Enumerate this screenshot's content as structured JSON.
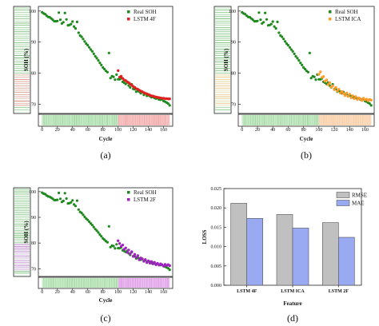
{
  "colors": {
    "real_soh": "#1e8a1e",
    "lstm_4f": "#e02020",
    "lstm_ica": "#ff9a2a",
    "lstm_2f": "#a020c0",
    "rmse_bar": "#c0c0c0",
    "mae_bar": "#99aaf2",
    "train_band": "#c9ecc9",
    "test_band_a": "#f7c7c7",
    "test_band_b": "#f9dcc2",
    "test_band_c": "#ecbff0"
  },
  "chart_data": [
    {
      "type": "scatter",
      "panel_label": "(a)",
      "xlabel": "Cycle",
      "ylabel": "SOH (%)",
      "xlim": [
        -5,
        172
      ],
      "ylim": [
        67,
        101.5
      ],
      "x_ticks": [
        "0",
        "20",
        "40",
        "60",
        "80",
        "100",
        "120",
        "140",
        "160"
      ],
      "y_ticks": [
        "70",
        "80",
        "90",
        "100"
      ],
      "legend": [
        "Real SOH",
        "LSTM 4F"
      ],
      "legend_position": "top-right",
      "series": [
        {
          "name": "Real SOH",
          "color": "#1e8a1e",
          "x": [
            0,
            2,
            4,
            6,
            8,
            10,
            12,
            14,
            16,
            18,
            20,
            22,
            24,
            26,
            28,
            30,
            32,
            34,
            36,
            38,
            40,
            42,
            44,
            46,
            48,
            50,
            52,
            54,
            56,
            58,
            60,
            62,
            64,
            66,
            68,
            70,
            72,
            74,
            76,
            78,
            80,
            82,
            84,
            86,
            88,
            90,
            92,
            94,
            96,
            98,
            100,
            102,
            104,
            106,
            108,
            110,
            112,
            114,
            116,
            118,
            120,
            122,
            124,
            126,
            128,
            130,
            132,
            134,
            136,
            138,
            140,
            142,
            144,
            146,
            148,
            150,
            152,
            154,
            156,
            158,
            160,
            162,
            164,
            166,
            168
          ],
          "y": [
            99.6,
            99.2,
            99.0,
            98.5,
            98.1,
            98.0,
            97.6,
            97.2,
            96.7,
            96.7,
            96.8,
            99.5,
            97.2,
            96.0,
            96.4,
            99.4,
            97.3,
            95.4,
            95.5,
            95.8,
            96.6,
            95.0,
            94.4,
            96.5,
            93.0,
            92.1,
            91.7,
            91.0,
            90.2,
            89.5,
            89.0,
            88.3,
            87.6,
            87.0,
            86.2,
            85.4,
            84.8,
            84.1,
            83.3,
            82.6,
            81.8,
            81.3,
            80.7,
            80.3,
            86.5,
            78.4,
            79.0,
            78.8,
            77.9,
            79.5,
            78.0,
            78.0,
            78.3,
            77.2,
            76.9,
            76.5,
            77.0,
            76.0,
            75.4,
            76.4,
            74.9,
            74.8,
            74.0,
            74.3,
            74.0,
            73.5,
            73.9,
            73.0,
            73.4,
            72.7,
            72.9,
            72.6,
            72.2,
            72.3,
            72.0,
            71.8,
            71.9,
            71.5,
            71.4,
            71.6,
            71.0,
            70.8,
            70.5,
            70.2,
            69.6
          ]
        },
        {
          "name": "LSTM 4F",
          "color": "#e02020",
          "x": [
            100,
            102,
            104,
            106,
            108,
            110,
            112,
            114,
            116,
            118,
            120,
            122,
            124,
            126,
            128,
            130,
            132,
            134,
            136,
            138,
            140,
            142,
            144,
            146,
            148,
            150,
            152,
            154,
            156,
            158,
            160,
            162,
            164,
            166,
            168
          ],
          "y": [
            80.8,
            78.7,
            79.0,
            78.3,
            77.8,
            77.6,
            77.2,
            76.9,
            76.5,
            76.1,
            75.7,
            75.4,
            75.0,
            74.8,
            74.5,
            74.2,
            74.0,
            73.7,
            73.5,
            73.3,
            73.1,
            72.9,
            72.7,
            72.6,
            72.4,
            72.3,
            72.2,
            72.1,
            72.0,
            71.9,
            71.9,
            71.8,
            71.8,
            71.7,
            71.7
          ]
        }
      ]
    },
    {
      "type": "scatter",
      "panel_label": "(b)",
      "xlabel": "Cycle",
      "ylabel": "SOH (%)",
      "xlim": [
        -5,
        172
      ],
      "ylim": [
        67,
        101.5
      ],
      "x_ticks": [
        "0",
        "20",
        "40",
        "60",
        "80",
        "100",
        "120",
        "140",
        "160"
      ],
      "y_ticks": [
        "70",
        "80",
        "90",
        "100"
      ],
      "legend": [
        "Real SOH",
        "LSTM ICA"
      ],
      "legend_position": "top-right",
      "series": [
        {
          "name": "Real SOH",
          "color": "#1e8a1e",
          "x": [
            0,
            2,
            4,
            6,
            8,
            10,
            12,
            14,
            16,
            18,
            20,
            22,
            24,
            26,
            28,
            30,
            32,
            34,
            36,
            38,
            40,
            42,
            44,
            46,
            48,
            50,
            52,
            54,
            56,
            58,
            60,
            62,
            64,
            66,
            68,
            70,
            72,
            74,
            76,
            78,
            80,
            82,
            84,
            86,
            88,
            90,
            92,
            94,
            96,
            98,
            100,
            102,
            104,
            106,
            108,
            110,
            112,
            114,
            116,
            118,
            120,
            122,
            124,
            126,
            128,
            130,
            132,
            134,
            136,
            138,
            140,
            142,
            144,
            146,
            148,
            150,
            152,
            154,
            156,
            158,
            160,
            162,
            164,
            166,
            168
          ],
          "y": [
            99.6,
            99.2,
            99.0,
            98.5,
            98.1,
            98.0,
            97.6,
            97.2,
            96.7,
            96.7,
            96.8,
            99.5,
            97.2,
            96.0,
            96.4,
            99.4,
            97.3,
            95.4,
            95.5,
            95.8,
            96.6,
            95.0,
            94.4,
            96.5,
            93.0,
            92.1,
            91.7,
            91.0,
            90.2,
            89.5,
            89.0,
            88.3,
            87.6,
            87.0,
            86.2,
            85.4,
            84.8,
            84.1,
            83.3,
            82.6,
            81.8,
            81.3,
            80.7,
            80.3,
            86.5,
            78.4,
            79.0,
            78.8,
            77.9,
            79.5,
            78.0,
            78.0,
            78.3,
            77.2,
            76.9,
            76.5,
            77.0,
            76.0,
            75.4,
            76.4,
            74.9,
            74.8,
            74.0,
            74.3,
            74.0,
            73.5,
            73.9,
            73.0,
            73.4,
            72.7,
            72.9,
            72.6,
            72.2,
            72.3,
            72.0,
            71.8,
            71.9,
            71.5,
            71.4,
            71.6,
            71.0,
            70.8,
            70.5,
            70.2,
            69.6
          ]
        },
        {
          "name": "LSTM ICA",
          "color": "#ff9a2a",
          "x": [
            100,
            102,
            104,
            106,
            108,
            110,
            112,
            114,
            116,
            118,
            120,
            122,
            124,
            126,
            128,
            130,
            132,
            134,
            136,
            138,
            140,
            142,
            144,
            146,
            148,
            150,
            152,
            154,
            156,
            158,
            160,
            162,
            164,
            166,
            168
          ],
          "y": [
            79.6,
            80.4,
            78.6,
            78.9,
            77.4,
            77.8,
            76.3,
            76.9,
            75.5,
            75.9,
            74.7,
            75.4,
            74.2,
            74.8,
            73.6,
            74.1,
            73.4,
            72.8,
            73.6,
            72.5,
            73.2,
            72.1,
            72.7,
            71.8,
            72.4,
            71.5,
            72.0,
            71.7,
            71.2,
            71.9,
            71.4,
            71.6,
            71.1,
            71.5,
            71.3
          ]
        }
      ]
    },
    {
      "type": "scatter",
      "panel_label": "(c)",
      "xlabel": "Cycle",
      "ylabel": "SOH (%)",
      "xlim": [
        -5,
        172
      ],
      "ylim": [
        67,
        101.5
      ],
      "x_ticks": [
        "0",
        "20",
        "40",
        "60",
        "80",
        "100",
        "120",
        "140",
        "160"
      ],
      "y_ticks": [
        "70",
        "80",
        "90",
        "100"
      ],
      "legend": [
        "Real SOH",
        "LSTM 2F"
      ],
      "legend_position": "top-right",
      "series": [
        {
          "name": "Real SOH",
          "color": "#1e8a1e",
          "x": [
            0,
            2,
            4,
            6,
            8,
            10,
            12,
            14,
            16,
            18,
            20,
            22,
            24,
            26,
            28,
            30,
            32,
            34,
            36,
            38,
            40,
            42,
            44,
            46,
            48,
            50,
            52,
            54,
            56,
            58,
            60,
            62,
            64,
            66,
            68,
            70,
            72,
            74,
            76,
            78,
            80,
            82,
            84,
            86,
            88,
            90,
            92,
            94,
            96,
            98,
            100,
            102,
            104,
            106,
            108,
            110,
            112,
            114,
            116,
            118,
            120,
            122,
            124,
            126,
            128,
            130,
            132,
            134,
            136,
            138,
            140,
            142,
            144,
            146,
            148,
            150,
            152,
            154,
            156,
            158,
            160,
            162,
            164,
            166,
            168
          ],
          "y": [
            99.6,
            99.2,
            99.0,
            98.5,
            98.1,
            98.0,
            97.6,
            97.2,
            96.7,
            96.7,
            96.8,
            99.5,
            97.2,
            96.0,
            96.4,
            99.4,
            97.3,
            95.4,
            95.5,
            95.8,
            96.6,
            95.0,
            94.4,
            96.5,
            93.0,
            92.1,
            91.7,
            91.0,
            90.2,
            89.5,
            89.0,
            88.3,
            87.6,
            87.0,
            86.2,
            85.4,
            84.8,
            84.1,
            83.3,
            82.6,
            81.8,
            81.3,
            80.7,
            80.3,
            86.5,
            78.4,
            79.0,
            78.8,
            77.9,
            79.5,
            78.0,
            78.0,
            78.3,
            77.2,
            76.9,
            76.5,
            77.0,
            76.0,
            75.4,
            76.4,
            74.9,
            74.8,
            74.0,
            74.3,
            74.0,
            73.5,
            73.9,
            73.0,
            73.4,
            72.7,
            72.9,
            72.6,
            72.2,
            72.3,
            72.0,
            71.8,
            71.9,
            71.5,
            71.4,
            71.6,
            71.0,
            70.8,
            70.5,
            70.2,
            69.6
          ]
        },
        {
          "name": "LSTM 2F",
          "color": "#a020c0",
          "x": [
            100,
            102,
            104,
            106,
            108,
            110,
            112,
            114,
            116,
            118,
            120,
            122,
            124,
            126,
            128,
            130,
            132,
            134,
            136,
            138,
            140,
            142,
            144,
            146,
            148,
            150,
            152,
            154,
            156,
            158,
            160,
            162,
            164,
            166,
            168
          ],
          "y": [
            80.9,
            79.8,
            78.7,
            79.2,
            77.6,
            78.1,
            76.4,
            77.3,
            75.8,
            76.6,
            74.8,
            75.6,
            74.4,
            75.1,
            73.5,
            74.2,
            73.8,
            72.9,
            73.6,
            72.4,
            73.1,
            72.2,
            72.8,
            71.9,
            72.5,
            71.6,
            72.1,
            71.4,
            71.9,
            71.5,
            71.0,
            71.7,
            71.3,
            71.6,
            71.2
          ]
        }
      ]
    },
    {
      "type": "bar",
      "panel_label": "(d)",
      "xlabel": "Feature",
      "ylabel": "LOSS",
      "categories": [
        "LSTM 4F",
        "LSTM ICA",
        "LSTM 2F"
      ],
      "ylim": [
        0,
        0.025
      ],
      "y_ticks": [
        "0.000",
        "0.005",
        "0.010",
        "0.015",
        "0.020",
        "0.025"
      ],
      "legend_position": "top-right",
      "series": [
        {
          "name": "RMSE",
          "color": "#c0c0c0",
          "values": [
            0.0212,
            0.0183,
            0.0162
          ]
        },
        {
          "name": "MAE",
          "color": "#99aaf2",
          "values": [
            0.0173,
            0.0148,
            0.0124
          ]
        }
      ]
    }
  ]
}
